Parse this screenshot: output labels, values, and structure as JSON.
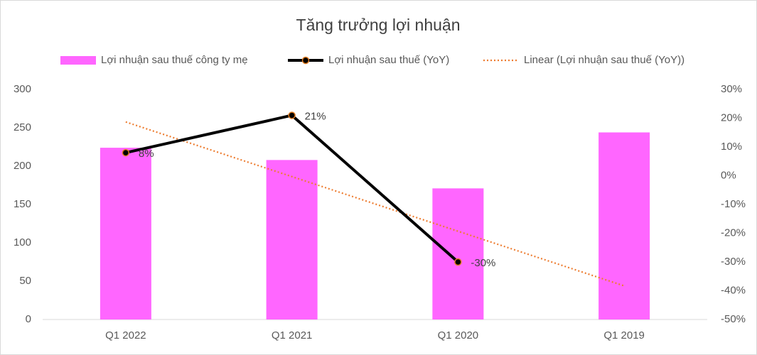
{
  "chart_data": {
    "type": "bar-line",
    "title": "Tăng trưởng lợi nhuận",
    "categories": [
      "Q1 2022",
      "Q1 2021",
      "Q1 2020",
      "Q1 2019"
    ],
    "series": [
      {
        "name": "Lợi nhuận sau thuế công ty mẹ",
        "type": "bar",
        "color": "#ff66ff",
        "values": [
          224,
          208,
          171,
          244
        ]
      },
      {
        "name": "Lợi nhuận sau thuế (YoY)",
        "type": "line",
        "axis": "y2",
        "color": "#000000",
        "marker_edge": "#e07b20",
        "values": [
          8,
          21,
          -30,
          null
        ],
        "value_labels": [
          "8%",
          "21%",
          "-30%",
          null
        ]
      },
      {
        "name": "Linear (Lợi nhuận sau thuế (YoY))",
        "type": "trendline",
        "axis": "y2",
        "color": "#ed7d31",
        "values": [
          18.7,
          -0.3,
          -19.3,
          -38.3
        ]
      }
    ],
    "ylim": [
      0,
      300
    ],
    "yticks": [
      0,
      50,
      100,
      150,
      200,
      250,
      300
    ],
    "y2lim": [
      -50,
      30
    ],
    "y2ticks": [
      {
        "value": -50,
        "label": "-50%"
      },
      {
        "value": -40,
        "label": "-40%"
      },
      {
        "value": -30,
        "label": "-30%"
      },
      {
        "value": -20,
        "label": "-20%"
      },
      {
        "value": -10,
        "label": "-10%"
      },
      {
        "value": 0,
        "label": "0%"
      },
      {
        "value": 10,
        "label": "10%"
      },
      {
        "value": 20,
        "label": "20%"
      },
      {
        "value": 30,
        "label": "30%"
      }
    ],
    "legend": "top"
  }
}
